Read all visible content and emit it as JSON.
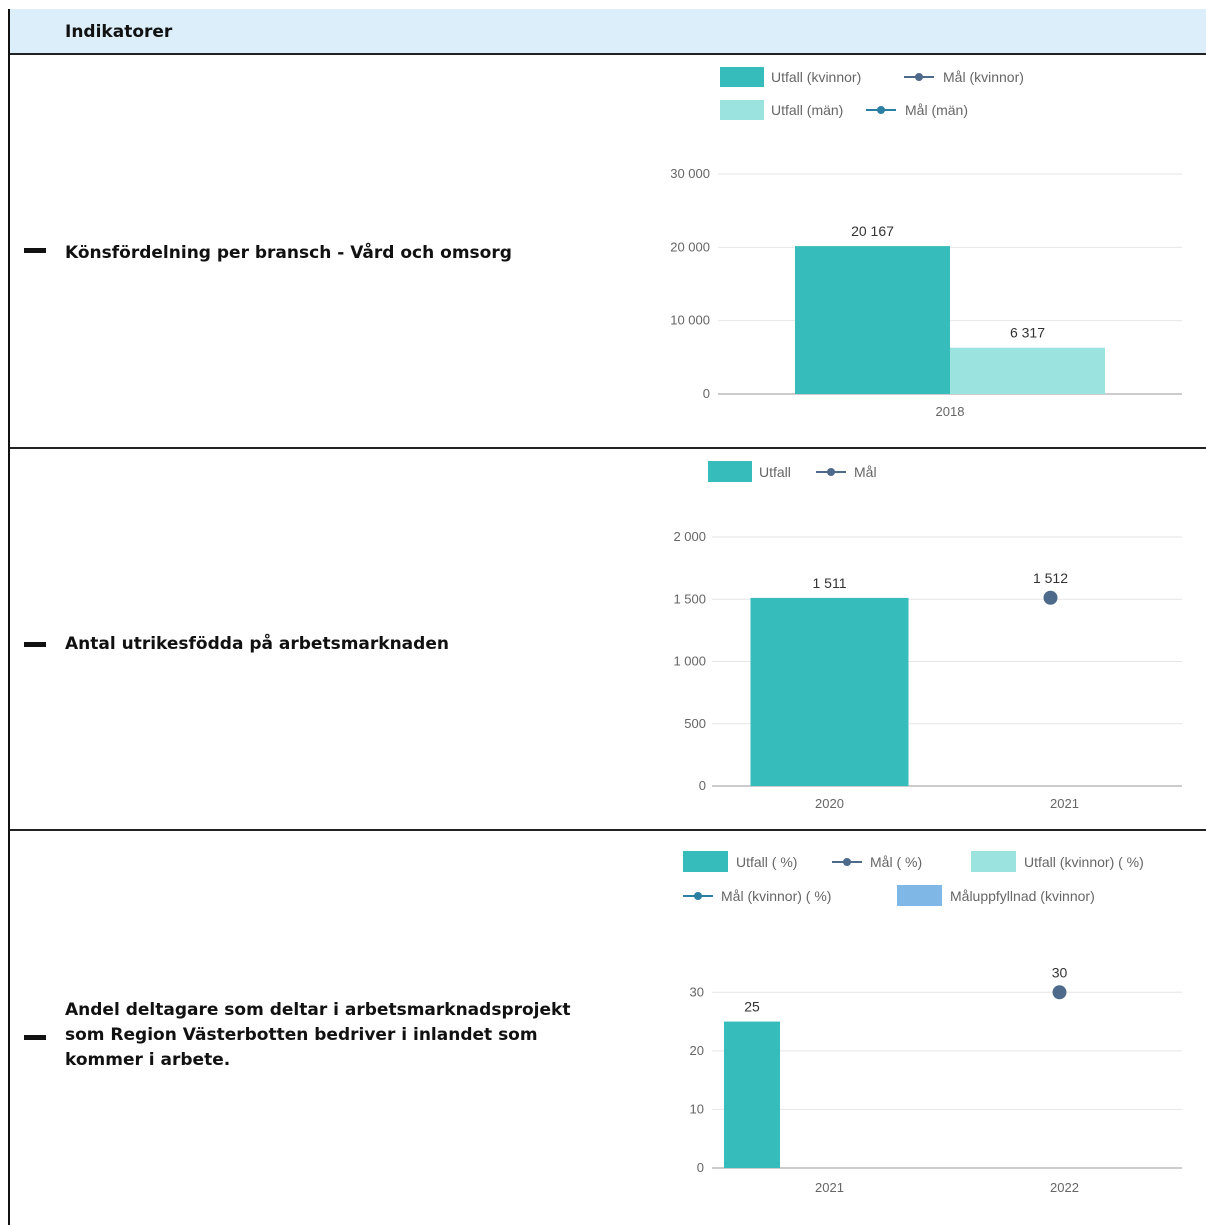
{
  "header": {
    "title": "Indikatorer"
  },
  "rows": [
    {
      "label": "Könsfördelning per bransch - Vård och omsorg"
    },
    {
      "label_lines": [
        "Antal utrikesfödda på arbetsmarknaden"
      ]
    },
    {
      "label_lines": [
        "Andel deltagare som deltar i arbetsmarknadsprojekt",
        "som Region Västerbotten bedriver i inlandet som",
        "kommer i arbete."
      ]
    }
  ],
  "colors": {
    "teal": "#37bcbc",
    "light_teal": "#9be3df",
    "navy": "#4d6a8a",
    "blue_marker": "#2b7fa3",
    "sky": "#7fb8e6",
    "axis": "#999999",
    "grid": "#e6e6e6"
  },
  "chart_data": [
    {
      "type": "bar",
      "categories": [
        "2018"
      ],
      "series": [
        {
          "name": "Utfall (kvinnor)",
          "values": [
            20167
          ],
          "labels": [
            "20 167"
          ]
        },
        {
          "name": "Utfall (män)",
          "values": [
            6317
          ],
          "labels": [
            "6 317"
          ]
        }
      ],
      "legend": [
        {
          "name": "Utfall (kvinnor)",
          "kind": "box",
          "color": "#37bcbc"
        },
        {
          "name": "Mål (kvinnor)",
          "kind": "line",
          "color": "#4d6a8a"
        },
        {
          "name": "Utfall (män)",
          "kind": "box",
          "color": "#9be3df"
        },
        {
          "name": "Mål (män)",
          "kind": "line",
          "color": "#2b7fa3"
        }
      ],
      "yticks": [
        0,
        10000,
        20000,
        30000
      ],
      "ytick_labels": [
        "0",
        "10 000",
        "20 000",
        "30 000"
      ],
      "ylim": [
        0,
        30000
      ],
      "legend_position": "top"
    },
    {
      "type": "bar",
      "categories": [
        "2020",
        "2021"
      ],
      "series": [
        {
          "name": "Utfall",
          "values": [
            1511,
            null
          ],
          "labels": [
            "1 511",
            ""
          ]
        },
        {
          "name": "Mål",
          "kind": "point",
          "values": [
            null,
            1512
          ],
          "labels": [
            "",
            "1 512"
          ]
        }
      ],
      "legend": [
        {
          "name": "Utfall",
          "kind": "box",
          "color": "#37bcbc"
        },
        {
          "name": "Mål",
          "kind": "line",
          "color": "#4d6a8a"
        }
      ],
      "yticks": [
        0,
        500,
        1000,
        1500,
        2000
      ],
      "ytick_labels": [
        "0",
        "500",
        "1 000",
        "1 500",
        "2 000"
      ],
      "ylim": [
        0,
        2000
      ],
      "legend_position": "top"
    },
    {
      "type": "bar",
      "categories": [
        "2021",
        "2022"
      ],
      "series": [
        {
          "name": "Utfall ( %)",
          "values": [
            25,
            null
          ],
          "labels": [
            "25",
            ""
          ]
        },
        {
          "name": "Mål ( %)",
          "kind": "point",
          "values": [
            null,
            30
          ],
          "labels": [
            "",
            "30"
          ]
        }
      ],
      "legend": [
        {
          "name": "Utfall ( %)",
          "kind": "box",
          "color": "#37bcbc"
        },
        {
          "name": "Mål ( %)",
          "kind": "line",
          "color": "#4d6a8a"
        },
        {
          "name": "Utfall (kvinnor) ( %)",
          "kind": "box",
          "color": "#9be3df"
        },
        {
          "name": "Mål (kvinnor) ( %)",
          "kind": "line",
          "color": "#2b7fa3"
        },
        {
          "name": "Måluppfyllnad (kvinnor)",
          "kind": "box",
          "color": "#7fb8e6"
        }
      ],
      "yticks": [
        0,
        10,
        20,
        30
      ],
      "ytick_labels": [
        "0",
        "10",
        "20",
        "30"
      ],
      "ylim": [
        0,
        35
      ],
      "legend_position": "top"
    }
  ]
}
